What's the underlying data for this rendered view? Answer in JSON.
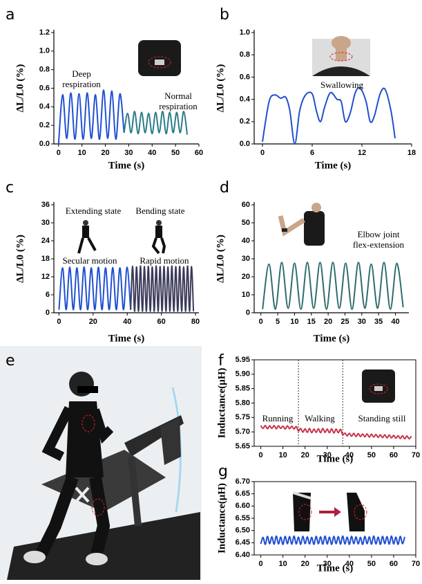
{
  "chart_data": [
    {
      "type": "line",
      "panel": "a",
      "xlabel": "Time (s)",
      "ylabel": "ΔL/L0 (%)",
      "xlim": [
        -2,
        60
      ],
      "ylim": [
        0,
        1.2
      ],
      "xticks": [
        0,
        10,
        20,
        30,
        40,
        50,
        60
      ],
      "yticks": [
        {
          "value": 0,
          "label": "0.0"
        },
        0.2,
        0.4,
        0.6,
        0.8,
        {
          "value": 1,
          "label": "1.0"
        },
        1.2
      ],
      "annotations": [
        {
          "lines": [
            "Deep",
            "respiration"
          ],
          "color": "#000000"
        },
        {
          "lines": [
            "Normal",
            "respiration"
          ],
          "color": "#000000"
        }
      ],
      "series": [
        {
          "color": "#1f4fd1",
          "x": [
            0,
            1.75,
            3.5,
            5.25,
            7,
            8.75,
            10.5,
            12.25,
            14,
            15.75,
            17.5,
            19.25,
            21,
            22.75,
            24.5,
            26.25,
            28
          ],
          "values": [
            0.0,
            0.53,
            0.06,
            0.55,
            0.05,
            0.54,
            0.05,
            0.55,
            0.06,
            0.53,
            0.05,
            0.58,
            0.06,
            0.57,
            0.05,
            0.54,
            0.12
          ]
        },
        {
          "color": "#2a7a8a",
          "x": [
            28,
            29.5,
            31,
            32.5,
            34,
            35.5,
            37,
            38.5,
            40,
            41.5,
            43,
            44.5,
            46,
            47.5,
            49,
            50.5,
            52,
            53.5,
            55
          ],
          "values": [
            0.12,
            0.33,
            0.12,
            0.35,
            0.11,
            0.34,
            0.12,
            0.33,
            0.11,
            0.34,
            0.12,
            0.35,
            0.11,
            0.34,
            0.12,
            0.34,
            0.12,
            0.35,
            0.1
          ]
        }
      ]
    },
    {
      "type": "line",
      "panel": "b",
      "xlabel": "Time (s)",
      "ylabel": "ΔL/L0 (%)",
      "xlim": [
        -1,
        18
      ],
      "ylim": [
        0,
        1
      ],
      "xticks": [
        0,
        6,
        12,
        18
      ],
      "yticks": [
        {
          "value": 0,
          "label": "0.0"
        },
        0.2,
        0.4,
        0.6,
        0.8,
        {
          "value": 1,
          "label": "1.0"
        }
      ],
      "annotations": [
        {
          "lines": [
            "Swallowing"
          ],
          "color": "#000000"
        }
      ],
      "series": [
        {
          "color": "#1f4fd1",
          "x": [
            0,
            0.8,
            1.5,
            2.2,
            2.8,
            3.3,
            3.9,
            4.5,
            5.2,
            6,
            6.5,
            7,
            7.5,
            8.2,
            9,
            9.5,
            10,
            10.6,
            11.2,
            11.8,
            12.5,
            13,
            13.5,
            14.2,
            14.8,
            15.5,
            16
          ],
          "values": [
            0.02,
            0.38,
            0.44,
            0.41,
            0.42,
            0.3,
            0.0,
            0.3,
            0.44,
            0.45,
            0.3,
            0.2,
            0.33,
            0.46,
            0.4,
            0.38,
            0.2,
            0.28,
            0.46,
            0.5,
            0.38,
            0.2,
            0.25,
            0.45,
            0.49,
            0.3,
            0.05
          ]
        }
      ]
    },
    {
      "type": "line",
      "panel": "c",
      "xlabel": "Time (s)",
      "ylabel": "ΔL/L0 (%)",
      "xlim": [
        -3,
        82
      ],
      "ylim": [
        0,
        36
      ],
      "xticks": [
        0,
        20,
        40,
        60,
        80
      ],
      "yticks": [
        0,
        6,
        12,
        18,
        24,
        30,
        36
      ],
      "annotations": [
        {
          "lines": [
            "Extending state"
          ],
          "color": "#000000"
        },
        {
          "lines": [
            "Bending state"
          ],
          "color": "#000000"
        },
        {
          "lines": [
            "Secular motion"
          ],
          "color": "#1f4fd1"
        },
        {
          "lines": [
            "Rapid motion"
          ],
          "color": "#c0203a"
        }
      ],
      "series": [
        {
          "color": "#1f4fd1",
          "x": [
            0,
            2.1,
            4.2,
            6.3,
            8.4,
            10.5,
            12.6,
            14.7,
            16.8,
            18.9,
            21,
            23.1,
            25.2,
            27.3,
            29.4,
            31.5,
            33.6,
            35.7,
            37.8,
            39.9,
            42
          ],
          "values": [
            1,
            15,
            1,
            15.2,
            1,
            15,
            1,
            15.3,
            1,
            15,
            1,
            15.2,
            1,
            15,
            1,
            15.1,
            1,
            15,
            1,
            15.2,
            1
          ]
        },
        {
          "color": "#3a3a5a",
          "x": [
            42,
            43.15,
            44.3,
            45.45,
            46.6,
            47.75,
            48.9,
            50.05,
            51.2,
            52.35,
            53.5,
            54.65,
            55.8,
            56.95,
            58.1,
            59.25,
            60.4,
            61.55,
            62.7,
            63.85,
            65,
            66.15,
            67.3,
            68.45,
            69.6,
            70.75,
            71.9,
            73.05,
            74.2,
            75.35,
            76.5,
            77.65,
            78.8
          ],
          "values": [
            1,
            15.5,
            0.5,
            15.3,
            0.5,
            15.6,
            0.5,
            15.4,
            0.5,
            15.5,
            0.5,
            15.3,
            0.5,
            15.6,
            0.5,
            15.4,
            0.5,
            15.5,
            0.5,
            15.3,
            0.5,
            15.6,
            0.5,
            15.4,
            0.5,
            15.5,
            0.5,
            15.3,
            0.5,
            15.6,
            0.5,
            15.4,
            0.5
          ]
        }
      ]
    },
    {
      "type": "line",
      "panel": "d",
      "xlabel": "Time (s)",
      "ylabel": "ΔL/L0 (%)",
      "xlim": [
        -2,
        44
      ],
      "ylim": [
        0,
        60
      ],
      "xticks": [
        0,
        5,
        10,
        15,
        20,
        25,
        30,
        35,
        40
      ],
      "yticks": [
        0,
        10,
        20,
        30,
        40,
        50,
        60
      ],
      "annotations": [
        {
          "lines": [
            "Elbow joint",
            "flex-extension"
          ],
          "color": "#000000"
        }
      ],
      "series": [
        {
          "color": "#2f6b6b",
          "x": [
            0.5,
            2.4,
            4.3,
            6.2,
            8.1,
            10,
            11.9,
            13.8,
            15.7,
            17.6,
            19.5,
            21.4,
            23.3,
            25.2,
            27.1,
            29,
            30.9,
            32.8,
            34.7,
            36.6,
            38.5,
            40.4,
            42.3
          ],
          "values": [
            2,
            27,
            2,
            28,
            2.5,
            27.5,
            2,
            28,
            2.5,
            28,
            2,
            28,
            2.5,
            27.5,
            2,
            28,
            2.5,
            27,
            2.5,
            28,
            2,
            27.5,
            3
          ]
        }
      ]
    },
    {
      "type": "photo",
      "panel": "e"
    },
    {
      "type": "line",
      "panel": "f",
      "xlabel": "Time (s)",
      "ylabel": "Inductance(μH)",
      "frame": true,
      "xlim": [
        -3,
        70
      ],
      "ylim": [
        5.65,
        5.95
      ],
      "xticks": [
        0,
        10,
        20,
        30,
        40,
        50,
        60,
        70
      ],
      "yticks": [
        5.65,
        {
          "value": 5.7,
          "label": "5.70"
        },
        5.75,
        {
          "value": 5.8,
          "label": "5.80"
        },
        5.85,
        {
          "value": 5.9,
          "label": "5.90"
        },
        5.95
      ],
      "vlines": [
        17,
        37
      ],
      "annotations": [
        {
          "lines": [
            "Running"
          ],
          "color": "#000000"
        },
        {
          "lines": [
            "Walking"
          ],
          "color": "#000000"
        },
        {
          "lines": [
            "Standing still"
          ],
          "color": "#000000"
        }
      ],
      "series": [
        {
          "color": "#c8324a",
          "x": [
            0,
            1,
            2,
            3,
            4,
            5,
            6,
            7,
            8,
            9,
            10,
            11,
            12,
            13,
            14,
            15,
            16,
            17,
            18,
            19,
            20,
            21,
            22,
            23,
            24,
            25,
            26,
            27,
            28,
            29,
            30,
            31,
            32,
            33,
            34,
            35,
            36,
            37,
            38,
            39,
            40,
            41,
            42,
            43,
            44,
            45,
            46,
            47,
            48,
            49,
            50,
            51,
            52,
            53,
            54,
            55,
            56,
            57,
            58,
            59,
            60,
            61,
            62,
            63,
            64,
            65,
            66,
            67,
            68
          ],
          "values": [
            5.722,
            5.712,
            5.722,
            5.711,
            5.721,
            5.712,
            5.722,
            5.711,
            5.721,
            5.712,
            5.72,
            5.71,
            5.721,
            5.711,
            5.72,
            5.71,
            5.719,
            5.703,
            5.712,
            5.699,
            5.711,
            5.698,
            5.712,
            5.697,
            5.71,
            5.698,
            5.711,
            5.697,
            5.712,
            5.698,
            5.71,
            5.697,
            5.711,
            5.696,
            5.71,
            5.697,
            5.709,
            5.69,
            5.696,
            5.686,
            5.695,
            5.685,
            5.695,
            5.684,
            5.694,
            5.684,
            5.693,
            5.683,
            5.693,
            5.682,
            5.692,
            5.682,
            5.691,
            5.681,
            5.69,
            5.68,
            5.69,
            5.679,
            5.689,
            5.679,
            5.688,
            5.678,
            5.687,
            5.677,
            5.687,
            5.676,
            5.686,
            5.676,
            5.685
          ]
        }
      ]
    },
    {
      "type": "line",
      "panel": "g",
      "xlabel": "Time (s)",
      "ylabel": "Inductance(μH)",
      "frame": true,
      "xlim": [
        -3,
        70
      ],
      "ylim": [
        6.4,
        6.7
      ],
      "xticks": [
        0,
        10,
        20,
        30,
        40,
        50,
        60,
        70
      ],
      "yticks": [
        {
          "value": 6.4,
          "label": "6.40"
        },
        6.45,
        {
          "value": 6.5,
          "label": "6.50"
        },
        6.55,
        {
          "value": 6.6,
          "label": "6.60"
        },
        6.65,
        {
          "value": 6.7,
          "label": "6.70"
        }
      ],
      "series": [
        {
          "color": "#1f4fd1",
          "x": [
            0,
            1,
            2,
            3,
            4,
            5,
            6,
            7,
            8,
            9,
            10,
            11,
            12,
            13,
            14,
            15,
            16,
            17,
            18,
            19,
            20,
            21,
            22,
            23,
            24,
            25,
            26,
            27,
            28,
            29,
            30,
            31,
            32,
            33,
            34,
            35,
            36,
            37,
            38,
            39,
            40,
            41,
            42,
            43,
            44,
            45,
            46,
            47,
            48,
            49,
            50,
            51,
            52,
            53,
            54,
            55,
            56,
            57,
            58,
            59,
            60,
            61,
            62,
            63,
            64,
            65
          ],
          "values": [
            6.445,
            6.472,
            6.443,
            6.476,
            6.446,
            6.474,
            6.444,
            6.477,
            6.445,
            6.473,
            6.443,
            6.476,
            6.446,
            6.475,
            6.444,
            6.477,
            6.445,
            6.473,
            6.443,
            6.476,
            6.446,
            6.474,
            6.445,
            6.472,
            6.443,
            6.476,
            6.446,
            6.474,
            6.444,
            6.477,
            6.445,
            6.473,
            6.443,
            6.476,
            6.446,
            6.475,
            6.444,
            6.477,
            6.445,
            6.473,
            6.443,
            6.476,
            6.446,
            6.474,
            6.445,
            6.472,
            6.443,
            6.476,
            6.446,
            6.474,
            6.444,
            6.477,
            6.445,
            6.473,
            6.443,
            6.476,
            6.446,
            6.475,
            6.444,
            6.477,
            6.445,
            6.473,
            6.443,
            6.476,
            6.446,
            6.474
          ]
        }
      ]
    }
  ]
}
